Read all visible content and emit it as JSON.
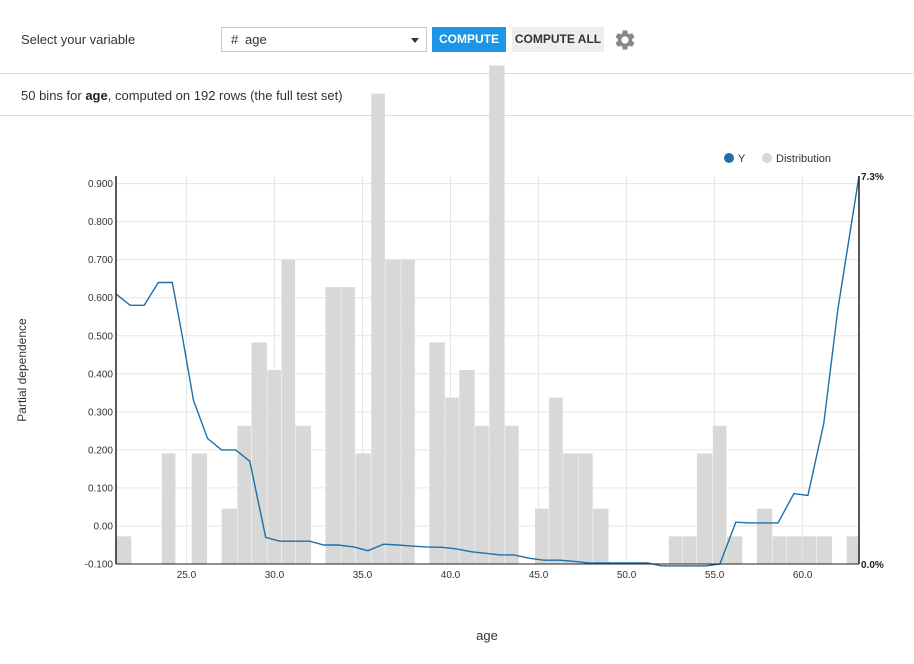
{
  "toolbar": {
    "select_label": "Select your variable",
    "variable_type_glyph": "#",
    "variable_value": "age",
    "compute_label": "COMPUTE",
    "compute_all_label": "COMPUTE ALL",
    "settings_icon": "gear-icon"
  },
  "summary": {
    "prefix": "50 bins for",
    "variable": "age",
    "suffix": ", computed on 192 rows (the full test set)"
  },
  "colors": {
    "accent": "#1b96e6",
    "line": "#1f6fa8",
    "distribution": "#d8d8d8"
  },
  "chart_data": {
    "type": "line",
    "xlabel": "age",
    "ylabel": "Partial dependence",
    "xlim": [
      21.0,
      63.2
    ],
    "ylim": [
      -0.1,
      0.92
    ],
    "y2lim": [
      0,
      7.3
    ],
    "grid": true,
    "legend_position": "top-right",
    "x_ticks": [
      "25.0",
      "30.0",
      "35.0",
      "40.0",
      "45.0",
      "50.0",
      "55.0",
      "60.0"
    ],
    "y_ticks": [
      "-0.100",
      "0.00",
      "0.100",
      "0.200",
      "0.300",
      "0.400",
      "0.500",
      "0.600",
      "0.700",
      "0.800",
      "0.900"
    ],
    "y2_ticks": [
      "0.0%",
      "7.3%"
    ],
    "series": [
      {
        "name": "Y",
        "color": "#1f6fa8",
        "x": [
          21.0,
          21.8,
          22.6,
          23.4,
          24.2,
          24.6,
          24.8,
          25.4,
          26.2,
          27.0,
          27.8,
          28.6,
          29.5,
          30.3,
          31.2,
          32.0,
          32.8,
          33.6,
          34.5,
          35.3,
          36.2,
          37.0,
          37.8,
          38.6,
          39.5,
          40.3,
          41.2,
          42.0,
          42.8,
          43.6,
          44.5,
          45.3,
          46.2,
          47.0,
          47.8,
          48.6,
          49.5,
          50.3,
          51.2,
          52.0,
          52.8,
          53.6,
          54.5,
          55.3,
          56.2,
          57.0,
          57.8,
          58.6,
          59.5,
          60.3,
          61.2,
          62.0,
          63.2
        ],
        "y": [
          0.61,
          0.58,
          0.58,
          0.64,
          0.64,
          0.54,
          0.49,
          0.33,
          0.23,
          0.2,
          0.2,
          0.17,
          -0.03,
          -0.04,
          -0.04,
          -0.04,
          -0.05,
          -0.05,
          -0.055,
          -0.065,
          -0.048,
          -0.05,
          -0.053,
          -0.055,
          -0.056,
          -0.06,
          -0.068,
          -0.072,
          -0.076,
          -0.076,
          -0.085,
          -0.09,
          -0.09,
          -0.093,
          -0.097,
          -0.097,
          -0.097,
          -0.097,
          -0.097,
          -0.105,
          -0.105,
          -0.105,
          -0.105,
          -0.1,
          0.01,
          0.008,
          0.008,
          0.008,
          0.085,
          0.08,
          0.27,
          0.57,
          0.92
        ]
      },
      {
        "name": "Distribution",
        "color": "#d8d8d8",
        "unit": "%",
        "bins_x_start": [
          21.0,
          21.9,
          22.7,
          23.6,
          24.4,
          25.3,
          26.2,
          27.0,
          27.9,
          28.7,
          29.6,
          30.4,
          31.2,
          32.1,
          32.9,
          33.8,
          34.6,
          35.5,
          36.3,
          37.2,
          38.0,
          38.8,
          39.7,
          40.5,
          41.4,
          42.2,
          43.1,
          43.9,
          44.8,
          45.6,
          46.4,
          47.3,
          48.1,
          49.0,
          49.8,
          50.7,
          51.5,
          52.4,
          53.2,
          54.0,
          54.9,
          55.7,
          56.6,
          57.4,
          58.3,
          59.1,
          60.0,
          60.8,
          61.7,
          62.5
        ],
        "bins_x_end": [
          21.9,
          22.7,
          23.6,
          24.4,
          25.3,
          26.2,
          27.0,
          27.9,
          28.7,
          29.6,
          30.4,
          31.2,
          32.1,
          32.9,
          33.8,
          34.6,
          35.5,
          36.3,
          37.2,
          38.0,
          38.8,
          39.7,
          40.5,
          41.4,
          42.2,
          43.1,
          43.9,
          44.8,
          45.6,
          46.4,
          47.3,
          48.1,
          49.0,
          49.8,
          50.7,
          51.5,
          52.4,
          53.2,
          54.0,
          54.9,
          55.7,
          56.6,
          57.4,
          58.3,
          59.1,
          60.0,
          60.8,
          61.7,
          62.5,
          63.2
        ],
        "values": [
          0.52,
          0.0,
          0.0,
          2.08,
          0.0,
          2.08,
          0.0,
          1.04,
          2.6,
          4.17,
          3.65,
          5.73,
          2.6,
          0.0,
          5.21,
          5.21,
          2.08,
          8.85,
          5.73,
          5.73,
          0.0,
          4.17,
          3.13,
          3.65,
          2.6,
          9.38,
          2.6,
          0.0,
          1.04,
          3.13,
          2.08,
          2.08,
          1.04,
          0.0,
          0.0,
          0.0,
          0.0,
          0.52,
          0.52,
          2.08,
          2.6,
          0.52,
          0.0,
          1.04,
          0.52,
          0.52,
          0.52,
          0.52,
          0.0,
          0.52
        ]
      }
    ]
  }
}
